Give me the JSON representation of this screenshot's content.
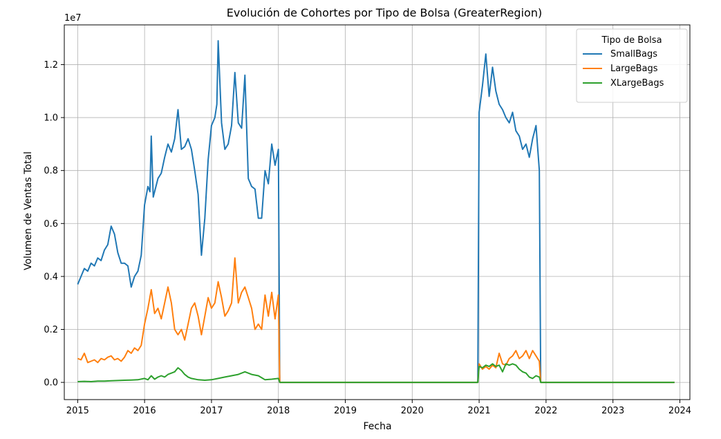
{
  "chart_data": {
    "type": "line",
    "title": "Evolución de Cohortes por Tipo de Bolsa (GreaterRegion)",
    "xlabel": "Fecha",
    "ylabel": "Volumen de Ventas Total",
    "y_offset_text": "1e7",
    "xlim": [
      2014.8,
      2024.15
    ],
    "ylim": [
      -0.065,
      1.35
    ],
    "x_ticks": [
      2015,
      2016,
      2017,
      2018,
      2019,
      2020,
      2021,
      2022,
      2023,
      2024
    ],
    "x_tick_labels": [
      "2015",
      "2016",
      "2017",
      "2018",
      "2019",
      "2020",
      "2021",
      "2022",
      "2023",
      "2024"
    ],
    "y_ticks": [
      0.0,
      0.2,
      0.4,
      0.6,
      0.8,
      1.0,
      1.2
    ],
    "y_tick_labels": [
      "0.0",
      "0.2",
      "0.4",
      "0.6",
      "0.8",
      "1.0",
      "1.2"
    ],
    "grid": true,
    "legend": {
      "title": "Tipo de Bolsa",
      "position": "top-right"
    },
    "series": [
      {
        "name": "SmallBags",
        "color": "#1f77b4",
        "points": [
          [
            2015.0,
            0.37
          ],
          [
            2015.05,
            0.4
          ],
          [
            2015.1,
            0.43
          ],
          [
            2015.15,
            0.42
          ],
          [
            2015.2,
            0.45
          ],
          [
            2015.25,
            0.44
          ],
          [
            2015.3,
            0.47
          ],
          [
            2015.35,
            0.46
          ],
          [
            2015.4,
            0.5
          ],
          [
            2015.45,
            0.52
          ],
          [
            2015.5,
            0.59
          ],
          [
            2015.55,
            0.56
          ],
          [
            2015.6,
            0.49
          ],
          [
            2015.65,
            0.45
          ],
          [
            2015.7,
            0.45
          ],
          [
            2015.75,
            0.44
          ],
          [
            2015.8,
            0.36
          ],
          [
            2015.85,
            0.4
          ],
          [
            2015.9,
            0.42
          ],
          [
            2015.95,
            0.48
          ],
          [
            2016.0,
            0.67
          ],
          [
            2016.05,
            0.74
          ],
          [
            2016.08,
            0.72
          ],
          [
            2016.1,
            0.93
          ],
          [
            2016.13,
            0.7
          ],
          [
            2016.2,
            0.77
          ],
          [
            2016.25,
            0.79
          ],
          [
            2016.3,
            0.85
          ],
          [
            2016.35,
            0.9
          ],
          [
            2016.4,
            0.87
          ],
          [
            2016.45,
            0.92
          ],
          [
            2016.5,
            1.03
          ],
          [
            2016.55,
            0.88
          ],
          [
            2016.6,
            0.89
          ],
          [
            2016.65,
            0.92
          ],
          [
            2016.7,
            0.88
          ],
          [
            2016.75,
            0.8
          ],
          [
            2016.8,
            0.71
          ],
          [
            2016.85,
            0.48
          ],
          [
            2016.9,
            0.62
          ],
          [
            2016.95,
            0.84
          ],
          [
            2017.0,
            0.97
          ],
          [
            2017.05,
            1.0
          ],
          [
            2017.08,
            1.05
          ],
          [
            2017.1,
            1.29
          ],
          [
            2017.15,
            0.98
          ],
          [
            2017.2,
            0.88
          ],
          [
            2017.25,
            0.9
          ],
          [
            2017.3,
            0.97
          ],
          [
            2017.35,
            1.17
          ],
          [
            2017.4,
            0.98
          ],
          [
            2017.45,
            0.96
          ],
          [
            2017.5,
            1.16
          ],
          [
            2017.55,
            0.77
          ],
          [
            2017.6,
            0.74
          ],
          [
            2017.65,
            0.73
          ],
          [
            2017.7,
            0.62
          ],
          [
            2017.75,
            0.62
          ],
          [
            2017.8,
            0.8
          ],
          [
            2017.85,
            0.75
          ],
          [
            2017.9,
            0.9
          ],
          [
            2017.95,
            0.82
          ],
          [
            2018.0,
            0.88
          ],
          [
            2018.02,
            0.0
          ],
          [
            2020.98,
            0.0
          ],
          [
            2021.0,
            1.02
          ],
          [
            2021.05,
            1.12
          ],
          [
            2021.1,
            1.24
          ],
          [
            2021.15,
            1.08
          ],
          [
            2021.2,
            1.19
          ],
          [
            2021.25,
            1.1
          ],
          [
            2021.3,
            1.05
          ],
          [
            2021.35,
            1.03
          ],
          [
            2021.4,
            1.0
          ],
          [
            2021.45,
            0.98
          ],
          [
            2021.5,
            1.02
          ],
          [
            2021.55,
            0.95
          ],
          [
            2021.6,
            0.93
          ],
          [
            2021.65,
            0.88
          ],
          [
            2021.7,
            0.9
          ],
          [
            2021.75,
            0.85
          ],
          [
            2021.8,
            0.92
          ],
          [
            2021.85,
            0.97
          ],
          [
            2021.9,
            0.8
          ],
          [
            2021.92,
            0.0
          ],
          [
            2023.92,
            0.0
          ]
        ]
      },
      {
        "name": "LargeBags",
        "color": "#ff7f0e",
        "points": [
          [
            2015.0,
            0.09
          ],
          [
            2015.05,
            0.085
          ],
          [
            2015.1,
            0.11
          ],
          [
            2015.15,
            0.075
          ],
          [
            2015.2,
            0.08
          ],
          [
            2015.25,
            0.085
          ],
          [
            2015.3,
            0.075
          ],
          [
            2015.35,
            0.09
          ],
          [
            2015.4,
            0.085
          ],
          [
            2015.45,
            0.095
          ],
          [
            2015.5,
            0.1
          ],
          [
            2015.55,
            0.085
          ],
          [
            2015.6,
            0.09
          ],
          [
            2015.65,
            0.08
          ],
          [
            2015.7,
            0.095
          ],
          [
            2015.75,
            0.12
          ],
          [
            2015.8,
            0.11
          ],
          [
            2015.85,
            0.13
          ],
          [
            2015.9,
            0.12
          ],
          [
            2015.95,
            0.14
          ],
          [
            2016.0,
            0.22
          ],
          [
            2016.05,
            0.28
          ],
          [
            2016.1,
            0.35
          ],
          [
            2016.15,
            0.26
          ],
          [
            2016.2,
            0.28
          ],
          [
            2016.25,
            0.24
          ],
          [
            2016.3,
            0.3
          ],
          [
            2016.35,
            0.36
          ],
          [
            2016.4,
            0.3
          ],
          [
            2016.45,
            0.2
          ],
          [
            2016.5,
            0.18
          ],
          [
            2016.55,
            0.2
          ],
          [
            2016.6,
            0.16
          ],
          [
            2016.65,
            0.22
          ],
          [
            2016.7,
            0.28
          ],
          [
            2016.75,
            0.3
          ],
          [
            2016.8,
            0.25
          ],
          [
            2016.85,
            0.18
          ],
          [
            2016.9,
            0.25
          ],
          [
            2016.95,
            0.32
          ],
          [
            2017.0,
            0.28
          ],
          [
            2017.05,
            0.3
          ],
          [
            2017.1,
            0.38
          ],
          [
            2017.15,
            0.32
          ],
          [
            2017.2,
            0.25
          ],
          [
            2017.25,
            0.27
          ],
          [
            2017.3,
            0.3
          ],
          [
            2017.35,
            0.47
          ],
          [
            2017.4,
            0.3
          ],
          [
            2017.45,
            0.34
          ],
          [
            2017.5,
            0.36
          ],
          [
            2017.55,
            0.32
          ],
          [
            2017.6,
            0.28
          ],
          [
            2017.65,
            0.2
          ],
          [
            2017.7,
            0.22
          ],
          [
            2017.75,
            0.2
          ],
          [
            2017.8,
            0.33
          ],
          [
            2017.85,
            0.25
          ],
          [
            2017.9,
            0.34
          ],
          [
            2017.95,
            0.24
          ],
          [
            2018.0,
            0.33
          ],
          [
            2018.02,
            0.0
          ],
          [
            2020.98,
            0.0
          ],
          [
            2021.0,
            0.07
          ],
          [
            2021.05,
            0.05
          ],
          [
            2021.1,
            0.06
          ],
          [
            2021.15,
            0.05
          ],
          [
            2021.2,
            0.065
          ],
          [
            2021.25,
            0.055
          ],
          [
            2021.3,
            0.11
          ],
          [
            2021.35,
            0.07
          ],
          [
            2021.4,
            0.065
          ],
          [
            2021.45,
            0.09
          ],
          [
            2021.5,
            0.1
          ],
          [
            2021.55,
            0.12
          ],
          [
            2021.6,
            0.09
          ],
          [
            2021.65,
            0.1
          ],
          [
            2021.7,
            0.12
          ],
          [
            2021.75,
            0.09
          ],
          [
            2021.8,
            0.12
          ],
          [
            2021.85,
            0.1
          ],
          [
            2021.9,
            0.08
          ],
          [
            2021.92,
            0.0
          ],
          [
            2023.92,
            0.0
          ]
        ]
      },
      {
        "name": "XLargeBags",
        "color": "#2ca02c",
        "points": [
          [
            2015.0,
            0.003
          ],
          [
            2015.1,
            0.004
          ],
          [
            2015.2,
            0.003
          ],
          [
            2015.3,
            0.005
          ],
          [
            2015.4,
            0.005
          ],
          [
            2015.5,
            0.006
          ],
          [
            2015.6,
            0.007
          ],
          [
            2015.7,
            0.008
          ],
          [
            2015.8,
            0.009
          ],
          [
            2015.9,
            0.01
          ],
          [
            2016.0,
            0.015
          ],
          [
            2016.05,
            0.01
          ],
          [
            2016.1,
            0.025
          ],
          [
            2016.15,
            0.012
          ],
          [
            2016.2,
            0.02
          ],
          [
            2016.25,
            0.025
          ],
          [
            2016.3,
            0.02
          ],
          [
            2016.35,
            0.03
          ],
          [
            2016.4,
            0.035
          ],
          [
            2016.45,
            0.04
          ],
          [
            2016.5,
            0.055
          ],
          [
            2016.55,
            0.045
          ],
          [
            2016.6,
            0.03
          ],
          [
            2016.65,
            0.02
          ],
          [
            2016.7,
            0.015
          ],
          [
            2016.8,
            0.01
          ],
          [
            2016.9,
            0.008
          ],
          [
            2017.0,
            0.01
          ],
          [
            2017.1,
            0.015
          ],
          [
            2017.2,
            0.02
          ],
          [
            2017.3,
            0.025
          ],
          [
            2017.4,
            0.03
          ],
          [
            2017.5,
            0.04
          ],
          [
            2017.55,
            0.035
          ],
          [
            2017.6,
            0.03
          ],
          [
            2017.7,
            0.025
          ],
          [
            2017.8,
            0.01
          ],
          [
            2017.9,
            0.012
          ],
          [
            2018.0,
            0.015
          ],
          [
            2018.02,
            0.0
          ],
          [
            2020.98,
            0.0
          ],
          [
            2021.0,
            0.06
          ],
          [
            2021.05,
            0.055
          ],
          [
            2021.1,
            0.065
          ],
          [
            2021.15,
            0.06
          ],
          [
            2021.2,
            0.07
          ],
          [
            2021.25,
            0.06
          ],
          [
            2021.3,
            0.065
          ],
          [
            2021.35,
            0.04
          ],
          [
            2021.4,
            0.07
          ],
          [
            2021.45,
            0.065
          ],
          [
            2021.5,
            0.07
          ],
          [
            2021.55,
            0.065
          ],
          [
            2021.6,
            0.05
          ],
          [
            2021.65,
            0.04
          ],
          [
            2021.7,
            0.035
          ],
          [
            2021.75,
            0.02
          ],
          [
            2021.8,
            0.015
          ],
          [
            2021.85,
            0.025
          ],
          [
            2021.9,
            0.02
          ],
          [
            2021.92,
            0.0
          ],
          [
            2023.92,
            0.0
          ]
        ]
      }
    ]
  }
}
